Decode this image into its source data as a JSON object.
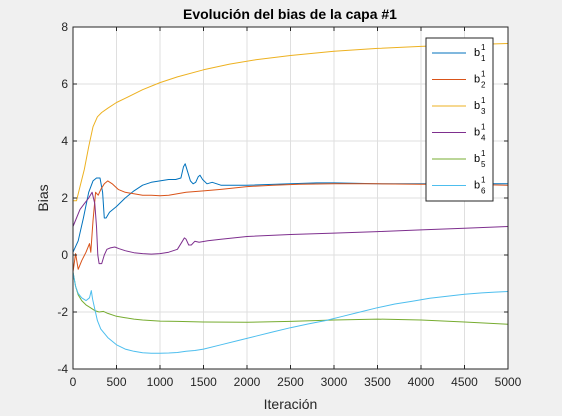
{
  "chart_data": {
    "type": "line",
    "title": "Evolución del bias de la capa #1",
    "xlabel": "Iteración",
    "ylabel": "Bias",
    "xlim": [
      0,
      5000
    ],
    "ylim": [
      -4,
      8
    ],
    "xticks": [
      0,
      500,
      1000,
      1500,
      2000,
      2500,
      3000,
      3500,
      4000,
      4500,
      5000
    ],
    "yticks": [
      -4,
      -2,
      0,
      2,
      4,
      6,
      8
    ],
    "grid": true,
    "legend_position": "top-right",
    "series": [
      {
        "name": "b_1^1",
        "base": "b",
        "sub": "1",
        "sup": "1",
        "color": "#0072BD",
        "points": [
          [
            0,
            0.1
          ],
          [
            60,
            0.5
          ],
          [
            120,
            1.3
          ],
          [
            180,
            2.2
          ],
          [
            230,
            2.6
          ],
          [
            270,
            2.7
          ],
          [
            310,
            2.7
          ],
          [
            340,
            2.2
          ],
          [
            360,
            1.3
          ],
          [
            380,
            1.3
          ],
          [
            420,
            1.5
          ],
          [
            500,
            1.7
          ],
          [
            600,
            2.0
          ],
          [
            700,
            2.25
          ],
          [
            800,
            2.45
          ],
          [
            900,
            2.55
          ],
          [
            1000,
            2.6
          ],
          [
            1100,
            2.65
          ],
          [
            1180,
            2.65
          ],
          [
            1240,
            2.7
          ],
          [
            1270,
            3.1
          ],
          [
            1290,
            3.2
          ],
          [
            1320,
            2.9
          ],
          [
            1350,
            2.6
          ],
          [
            1380,
            2.5
          ],
          [
            1410,
            2.55
          ],
          [
            1440,
            2.75
          ],
          [
            1460,
            2.8
          ],
          [
            1490,
            2.65
          ],
          [
            1540,
            2.5
          ],
          [
            1600,
            2.55
          ],
          [
            1700,
            2.45
          ],
          [
            2000,
            2.45
          ],
          [
            2500,
            2.5
          ],
          [
            2800,
            2.53
          ],
          [
            3000,
            2.53
          ],
          [
            3500,
            2.5
          ],
          [
            4000,
            2.5
          ],
          [
            4500,
            2.5
          ],
          [
            5000,
            2.5
          ]
        ]
      },
      {
        "name": "b_2^1",
        "base": "b",
        "sub": "2",
        "sup": "1",
        "color": "#D95319",
        "points": [
          [
            0,
            -0.6
          ],
          [
            30,
            0.05
          ],
          [
            60,
            -0.5
          ],
          [
            100,
            -0.2
          ],
          [
            150,
            0.1
          ],
          [
            190,
            0.4
          ],
          [
            205,
            0.1
          ],
          [
            230,
            1.2
          ],
          [
            260,
            2.2
          ],
          [
            290,
            2.1
          ],
          [
            320,
            2.3
          ],
          [
            360,
            2.5
          ],
          [
            400,
            2.6
          ],
          [
            450,
            2.5
          ],
          [
            520,
            2.3
          ],
          [
            600,
            2.2
          ],
          [
            700,
            2.15
          ],
          [
            800,
            2.1
          ],
          [
            900,
            2.1
          ],
          [
            1000,
            2.08
          ],
          [
            1100,
            2.1
          ],
          [
            1200,
            2.15
          ],
          [
            1300,
            2.2
          ],
          [
            1500,
            2.25
          ],
          [
            1700,
            2.3
          ],
          [
            2000,
            2.4
          ],
          [
            2300,
            2.45
          ],
          [
            2600,
            2.48
          ],
          [
            3000,
            2.5
          ],
          [
            3500,
            2.5
          ],
          [
            4000,
            2.48
          ],
          [
            4500,
            2.48
          ],
          [
            5000,
            2.45
          ]
        ]
      },
      {
        "name": "b_3^1",
        "base": "b",
        "sub": "3",
        "sup": "1",
        "color": "#EDB120",
        "points": [
          [
            0,
            1.9
          ],
          [
            40,
            1.9
          ],
          [
            80,
            2.4
          ],
          [
            130,
            3.0
          ],
          [
            180,
            3.8
          ],
          [
            230,
            4.5
          ],
          [
            280,
            4.85
          ],
          [
            330,
            5.0
          ],
          [
            400,
            5.15
          ],
          [
            500,
            5.35
          ],
          [
            600,
            5.5
          ],
          [
            800,
            5.8
          ],
          [
            1000,
            6.05
          ],
          [
            1200,
            6.25
          ],
          [
            1500,
            6.5
          ],
          [
            1800,
            6.7
          ],
          [
            2100,
            6.85
          ],
          [
            2500,
            7.0
          ],
          [
            3000,
            7.15
          ],
          [
            3500,
            7.25
          ],
          [
            4000,
            7.32
          ],
          [
            4500,
            7.38
          ],
          [
            5000,
            7.42
          ]
        ]
      },
      {
        "name": "b_4^1",
        "base": "b",
        "sub": "4",
        "sup": "1",
        "color": "#7E2F8E",
        "points": [
          [
            0,
            1.0
          ],
          [
            40,
            1.3
          ],
          [
            80,
            1.6
          ],
          [
            130,
            1.8
          ],
          [
            180,
            2.0
          ],
          [
            220,
            2.2
          ],
          [
            250,
            1.8
          ],
          [
            270,
            1.0
          ],
          [
            285,
            0.0
          ],
          [
            300,
            -0.3
          ],
          [
            330,
            -0.3
          ],
          [
            360,
            0.0
          ],
          [
            390,
            0.2
          ],
          [
            430,
            0.25
          ],
          [
            480,
            0.28
          ],
          [
            530,
            0.22
          ],
          [
            600,
            0.15
          ],
          [
            700,
            0.08
          ],
          [
            800,
            0.05
          ],
          [
            900,
            0.03
          ],
          [
            1000,
            0.05
          ],
          [
            1100,
            0.1
          ],
          [
            1200,
            0.2
          ],
          [
            1250,
            0.45
          ],
          [
            1280,
            0.6
          ],
          [
            1300,
            0.55
          ],
          [
            1330,
            0.35
          ],
          [
            1360,
            0.35
          ],
          [
            1400,
            0.48
          ],
          [
            1450,
            0.45
          ],
          [
            1550,
            0.5
          ],
          [
            1700,
            0.55
          ],
          [
            2000,
            0.65
          ],
          [
            2500,
            0.72
          ],
          [
            3000,
            0.77
          ],
          [
            3500,
            0.82
          ],
          [
            4000,
            0.88
          ],
          [
            4500,
            0.94
          ],
          [
            5000,
            1.0
          ]
        ]
      },
      {
        "name": "b_5^1",
        "base": "b",
        "sub": "5",
        "sup": "1",
        "color": "#77AC30",
        "points": [
          [
            0,
            -0.6
          ],
          [
            30,
            -1.1
          ],
          [
            60,
            -1.4
          ],
          [
            100,
            -1.6
          ],
          [
            150,
            -1.75
          ],
          [
            200,
            -1.85
          ],
          [
            250,
            -1.95
          ],
          [
            300,
            -2.0
          ],
          [
            350,
            -1.98
          ],
          [
            400,
            -2.05
          ],
          [
            500,
            -2.15
          ],
          [
            600,
            -2.2
          ],
          [
            700,
            -2.25
          ],
          [
            800,
            -2.28
          ],
          [
            1000,
            -2.32
          ],
          [
            1200,
            -2.33
          ],
          [
            1500,
            -2.35
          ],
          [
            2000,
            -2.36
          ],
          [
            2500,
            -2.33
          ],
          [
            3000,
            -2.28
          ],
          [
            3500,
            -2.25
          ],
          [
            4000,
            -2.28
          ],
          [
            4500,
            -2.35
          ],
          [
            5000,
            -2.43
          ]
        ]
      },
      {
        "name": "b_6^1",
        "base": "b",
        "sub": "6",
        "sup": "1",
        "color": "#4DBEEE",
        "points": [
          [
            0,
            -0.6
          ],
          [
            30,
            -1.1
          ],
          [
            60,
            -1.35
          ],
          [
            100,
            -1.5
          ],
          [
            150,
            -1.6
          ],
          [
            190,
            -1.5
          ],
          [
            210,
            -1.25
          ],
          [
            225,
            -1.55
          ],
          [
            250,
            -1.9
          ],
          [
            280,
            -2.3
          ],
          [
            320,
            -2.6
          ],
          [
            400,
            -2.9
          ],
          [
            500,
            -3.15
          ],
          [
            600,
            -3.3
          ],
          [
            700,
            -3.38
          ],
          [
            800,
            -3.43
          ],
          [
            900,
            -3.45
          ],
          [
            1000,
            -3.45
          ],
          [
            1100,
            -3.44
          ],
          [
            1200,
            -3.42
          ],
          [
            1300,
            -3.38
          ],
          [
            1400,
            -3.35
          ],
          [
            1500,
            -3.3
          ],
          [
            1700,
            -3.15
          ],
          [
            1900,
            -3.0
          ],
          [
            2100,
            -2.85
          ],
          [
            2300,
            -2.7
          ],
          [
            2500,
            -2.55
          ],
          [
            2700,
            -2.42
          ],
          [
            2900,
            -2.3
          ],
          [
            3100,
            -2.15
          ],
          [
            3300,
            -2.0
          ],
          [
            3500,
            -1.85
          ],
          [
            3700,
            -1.72
          ],
          [
            3900,
            -1.62
          ],
          [
            4100,
            -1.52
          ],
          [
            4300,
            -1.45
          ],
          [
            4500,
            -1.38
          ],
          [
            4700,
            -1.33
          ],
          [
            4850,
            -1.3
          ],
          [
            5000,
            -1.28
          ]
        ]
      }
    ]
  }
}
